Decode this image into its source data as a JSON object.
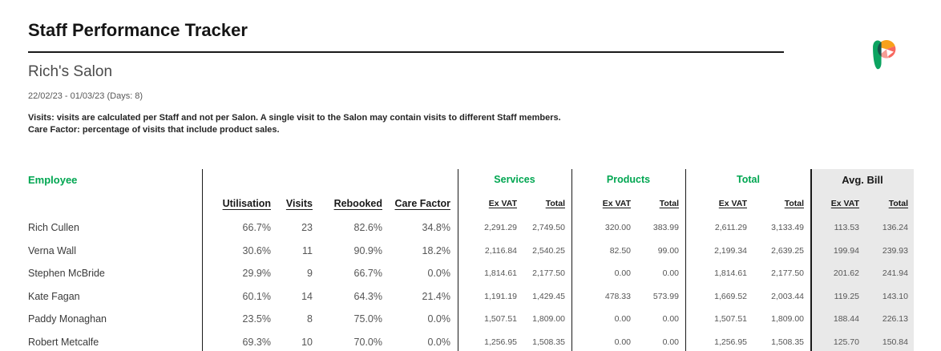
{
  "header": {
    "title": "Staff Performance Tracker",
    "salon_name": "Rich's Salon",
    "date_range": "22/02/23 - 01/03/23 (Days: 8)",
    "note_visits": "Visits: visits are calculated per Staff and not per Salon. A single visit to the Salon may contain visits to different Staff members.",
    "note_care_factor": "Care Factor: percentage of visits that include product sales."
  },
  "colors": {
    "accent_green": "#00a651",
    "avg_bill_bg": "#e9e9e9",
    "rule": "#1a1a1a"
  },
  "logo": {
    "name": "phorest-logo",
    "green": "#0ca360",
    "dark_teal": "#17534a",
    "orange": "#f8a11b",
    "coral": "#f8685f",
    "pink": "#f59d95"
  },
  "table": {
    "employee_header": "Employee",
    "groups": [
      "Services",
      "Products",
      "Total",
      "Avg. Bill"
    ],
    "metric_headers": [
      "Utilisation",
      "Visits",
      "Rebooked",
      "Care Factor"
    ],
    "money_subheaders": [
      "Ex VAT",
      "Total"
    ],
    "rows": [
      {
        "employee": "Rich Cullen",
        "utilisation": "66.7%",
        "visits": "23",
        "rebooked": "82.6%",
        "care_factor": "34.8%",
        "services_ex_vat": "2,291.29",
        "services_total": "2,749.50",
        "products_ex_vat": "320.00",
        "products_total": "383.99",
        "total_ex_vat": "2,611.29",
        "total_total": "3,133.49",
        "avg_bill_ex_vat": "113.53",
        "avg_bill_total": "136.24"
      },
      {
        "employee": "Verna Wall",
        "utilisation": "30.6%",
        "visits": "11",
        "rebooked": "90.9%",
        "care_factor": "18.2%",
        "services_ex_vat": "2,116.84",
        "services_total": "2,540.25",
        "products_ex_vat": "82.50",
        "products_total": "99.00",
        "total_ex_vat": "2,199.34",
        "total_total": "2,639.25",
        "avg_bill_ex_vat": "199.94",
        "avg_bill_total": "239.93"
      },
      {
        "employee": "Stephen McBride",
        "utilisation": "29.9%",
        "visits": "9",
        "rebooked": "66.7%",
        "care_factor": "0.0%",
        "services_ex_vat": "1,814.61",
        "services_total": "2,177.50",
        "products_ex_vat": "0.00",
        "products_total": "0.00",
        "total_ex_vat": "1,814.61",
        "total_total": "2,177.50",
        "avg_bill_ex_vat": "201.62",
        "avg_bill_total": "241.94"
      },
      {
        "employee": "Kate Fagan",
        "utilisation": "60.1%",
        "visits": "14",
        "rebooked": "64.3%",
        "care_factor": "21.4%",
        "services_ex_vat": "1,191.19",
        "services_total": "1,429.45",
        "products_ex_vat": "478.33",
        "products_total": "573.99",
        "total_ex_vat": "1,669.52",
        "total_total": "2,003.44",
        "avg_bill_ex_vat": "119.25",
        "avg_bill_total": "143.10"
      },
      {
        "employee": "Paddy Monaghan",
        "utilisation": "23.5%",
        "visits": "8",
        "rebooked": "75.0%",
        "care_factor": "0.0%",
        "services_ex_vat": "1,507.51",
        "services_total": "1,809.00",
        "products_ex_vat": "0.00",
        "products_total": "0.00",
        "total_ex_vat": "1,507.51",
        "total_total": "1,809.00",
        "avg_bill_ex_vat": "188.44",
        "avg_bill_total": "226.13"
      },
      {
        "employee": "Robert Metcalfe",
        "utilisation": "69.3%",
        "visits": "10",
        "rebooked": "70.0%",
        "care_factor": "0.0%",
        "services_ex_vat": "1,256.95",
        "services_total": "1,508.35",
        "products_ex_vat": "0.00",
        "products_total": "0.00",
        "total_ex_vat": "1,256.95",
        "total_total": "1,508.35",
        "avg_bill_ex_vat": "125.70",
        "avg_bill_total": "150.84"
      }
    ]
  }
}
